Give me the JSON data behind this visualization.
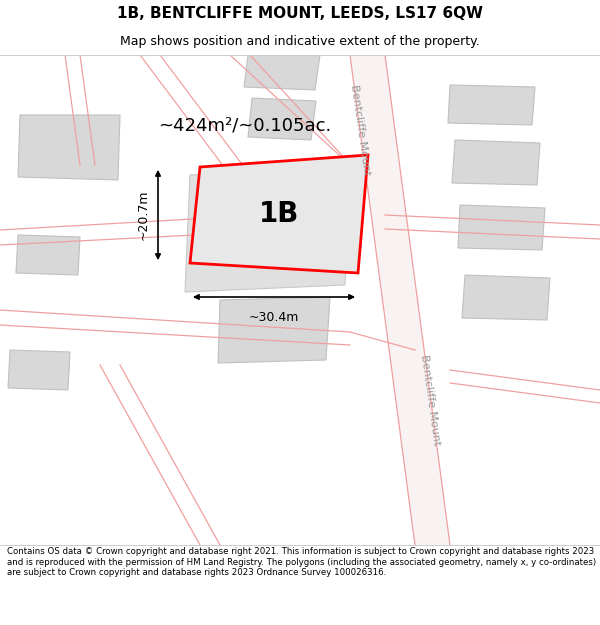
{
  "title": "1B, BENTCLIFFE MOUNT, LEEDS, LS17 6QW",
  "subtitle": "Map shows position and indicative extent of the property.",
  "footer": "Contains OS data © Crown copyright and database right 2021. This information is subject to Crown copyright and database rights 2023 and is reproduced with the permission of HM Land Registry. The polygons (including the associated geometry, namely x, y co-ordinates) are subject to Crown copyright and database rights 2023 Ordnance Survey 100026316.",
  "dim_label": "~424m²/~0.105ac.",
  "label_1b": "1B",
  "dim_width": "~30.4m",
  "dim_height": "~20.7m",
  "road_label_top": "Bentcliffe Mount",
  "road_label_bottom": "Bentcliffe Mount",
  "road_line_color": "#f0a0a0",
  "road_fill_color": "#f8e8e8",
  "building_fill": "#d8d8d8",
  "building_outline": "#c0c0c0",
  "prop_fill": "#e8e8e8",
  "prop_outline": "#ff0000",
  "title_fontsize": 11,
  "subtitle_fontsize": 9,
  "footer_fontsize": 6.2
}
